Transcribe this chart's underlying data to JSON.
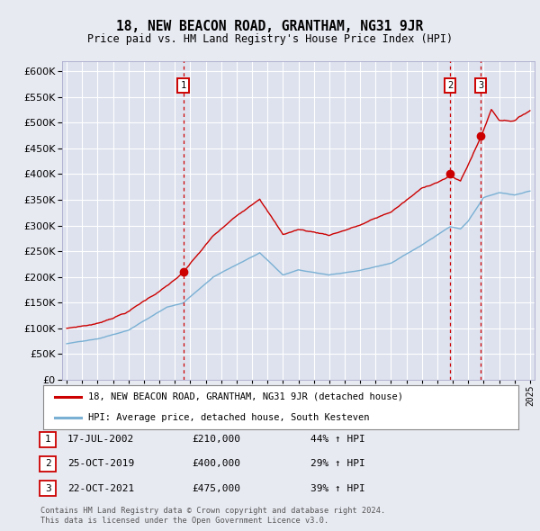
{
  "title": "18, NEW BEACON ROAD, GRANTHAM, NG31 9JR",
  "subtitle": "Price paid vs. HM Land Registry's House Price Index (HPI)",
  "ylim": [
    0,
    620000
  ],
  "yticks": [
    0,
    50000,
    100000,
    150000,
    200000,
    250000,
    300000,
    350000,
    400000,
    450000,
    500000,
    550000,
    600000
  ],
  "xlim_left": 1994.7,
  "xlim_right": 2025.3,
  "bg_color": "#e8eaf2",
  "plot_bg": "#dde2ee",
  "grid_color": "#ffffff",
  "red_color": "#cc0000",
  "blue_color": "#7ab0d4",
  "markers": [
    {
      "x": 2002.54,
      "label": "1",
      "price": 210000
    },
    {
      "x": 2019.82,
      "label": "2",
      "price": 400000
    },
    {
      "x": 2021.81,
      "label": "3",
      "price": 475000
    }
  ],
  "legend_red": "18, NEW BEACON ROAD, GRANTHAM, NG31 9JR (detached house)",
  "legend_blue": "HPI: Average price, detached house, South Kesteven",
  "table_rows": [
    [
      "1",
      "17-JUL-2002",
      "£210,000",
      "44% ↑ HPI"
    ],
    [
      "2",
      "25-OCT-2019",
      "£400,000",
      "29% ↑ HPI"
    ],
    [
      "3",
      "22-OCT-2021",
      "£475,000",
      "39% ↑ HPI"
    ]
  ],
  "footer1": "Contains HM Land Registry data © Crown copyright and database right 2024.",
  "footer2": "This data is licensed under the Open Government Licence v3.0."
}
